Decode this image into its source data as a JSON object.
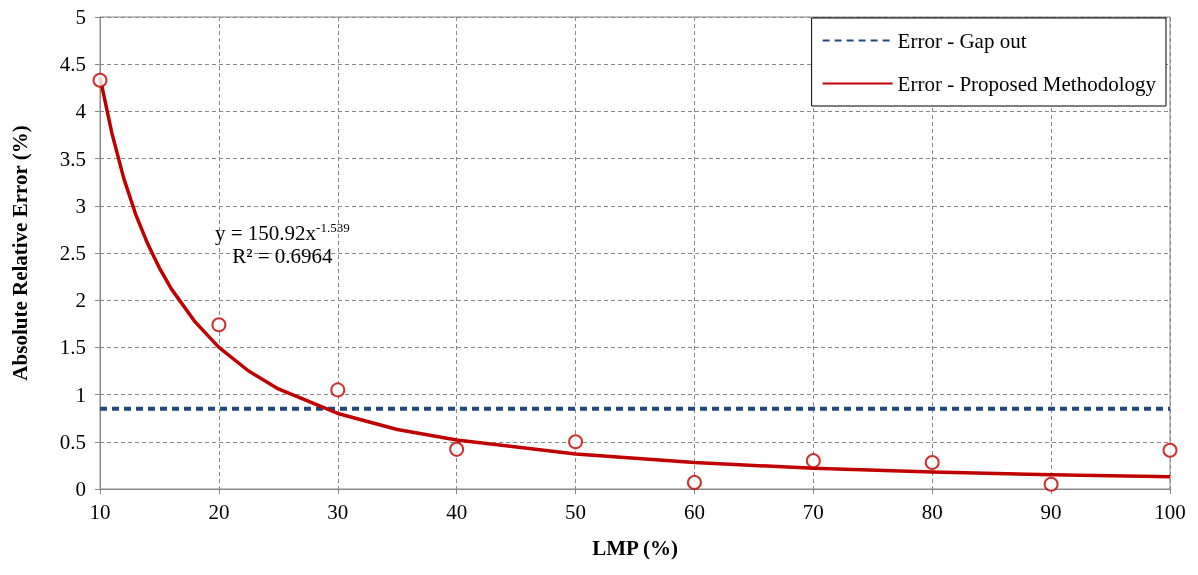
{
  "chart_data": {
    "type": "scatter",
    "xlabel": "LMP (%)",
    "ylabel": "Absolute Relative Error (%)",
    "xlim": [
      10,
      100
    ],
    "xticks": [
      10,
      20,
      30,
      40,
      50,
      60,
      70,
      80,
      90,
      100
    ],
    "ylim": [
      0,
      5
    ],
    "yticks": [
      0,
      0.5,
      1,
      1.5,
      2,
      2.5,
      3,
      3.5,
      4,
      4.5,
      5
    ],
    "grid": true,
    "legend": "top right",
    "annotations": [
      "y = 150.92x$^{-1.539}$",
      "R² = 0.6964"
    ],
    "series": [
      {
        "color": "#c00000",
        "marker": "circle",
        "x": [
          10,
          20,
          30,
          40,
          50,
          60,
          70,
          80,
          90,
          100
        ],
        "values": [
          4.33,
          1.74,
          1.05,
          0.42,
          0.5,
          0.07,
          0.3,
          0.28,
          0.05,
          0.41
        ]
      },
      {
        "name": "Error - Gap out",
        "type": "line",
        "color": "#1f497d",
        "line_style": "dashed",
        "x": [
          10,
          100
        ],
        "values": [
          0.85,
          0.85
        ]
      },
      {
        "name": "Error - Proposed Methodology",
        "type": "line",
        "color": "#c00000",
        "line_style": "solid",
        "x": [
          10,
          11,
          12,
          13,
          14,
          15,
          16,
          18,
          20,
          22.5,
          25,
          30,
          35,
          40,
          50,
          60,
          70,
          80,
          90,
          100
        ],
        "values": [
          4.36,
          3.77,
          3.29,
          2.91,
          2.6,
          2.34,
          2.12,
          1.77,
          1.5,
          1.25,
          1.06,
          0.8,
          0.63,
          0.52,
          0.37,
          0.28,
          0.22,
          0.18,
          0.15,
          0.13
        ]
      }
    ]
  }
}
